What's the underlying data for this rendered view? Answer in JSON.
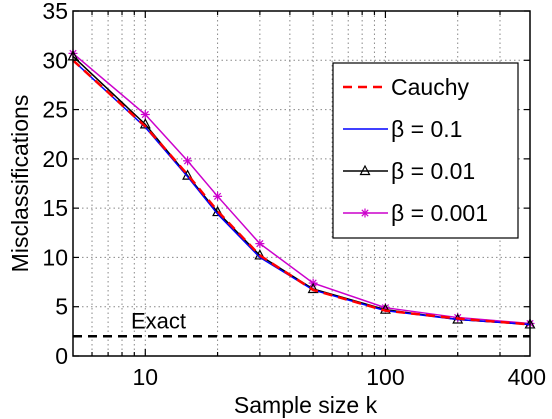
{
  "chart_data": {
    "type": "line",
    "xlabel": "Sample size k",
    "ylabel": "Misclassifications",
    "xscale": "log",
    "xlim": [
      5,
      400
    ],
    "ylim": [
      0,
      35
    ],
    "xticks": [
      10,
      100,
      400
    ],
    "xtick_labels": [
      "10",
      "100",
      "400"
    ],
    "yticks": [
      0,
      5,
      10,
      15,
      20,
      25,
      30,
      35
    ],
    "ytick_labels": [
      "0",
      "5",
      "10",
      "15",
      "20",
      "25",
      "30",
      "35"
    ],
    "grid": true,
    "legend_position": "right",
    "x": [
      5,
      10,
      15,
      20,
      30,
      50,
      100,
      200,
      400
    ],
    "series": [
      {
        "name": "Cauchy",
        "style": "dashed",
        "color": "#ff0000",
        "marker": "none",
        "values": [
          30.0,
          23.3,
          18.4,
          14.7,
          10.2,
          6.7,
          4.6,
          3.8,
          3.2
        ]
      },
      {
        "name": "β = 0.1",
        "style": "solid",
        "color": "#0000ff",
        "marker": "none",
        "values": [
          30.0,
          23.2,
          18.2,
          14.4,
          10.0,
          6.7,
          4.6,
          3.7,
          3.2
        ]
      },
      {
        "name": "β = 0.01",
        "style": "solid",
        "color": "#000000",
        "marker": "triangle",
        "values": [
          30.4,
          23.5,
          18.3,
          14.6,
          10.2,
          6.8,
          4.7,
          3.7,
          3.2
        ]
      },
      {
        "name": "β = 0.001",
        "style": "solid",
        "color": "#cc00cc",
        "marker": "asterisk",
        "values": [
          30.7,
          24.5,
          19.8,
          16.2,
          11.4,
          7.4,
          4.9,
          3.9,
          3.3
        ]
      }
    ],
    "reference_lines": [
      {
        "label": "Exact",
        "y": 2.0,
        "style": "dashed",
        "color": "#000000"
      }
    ]
  }
}
